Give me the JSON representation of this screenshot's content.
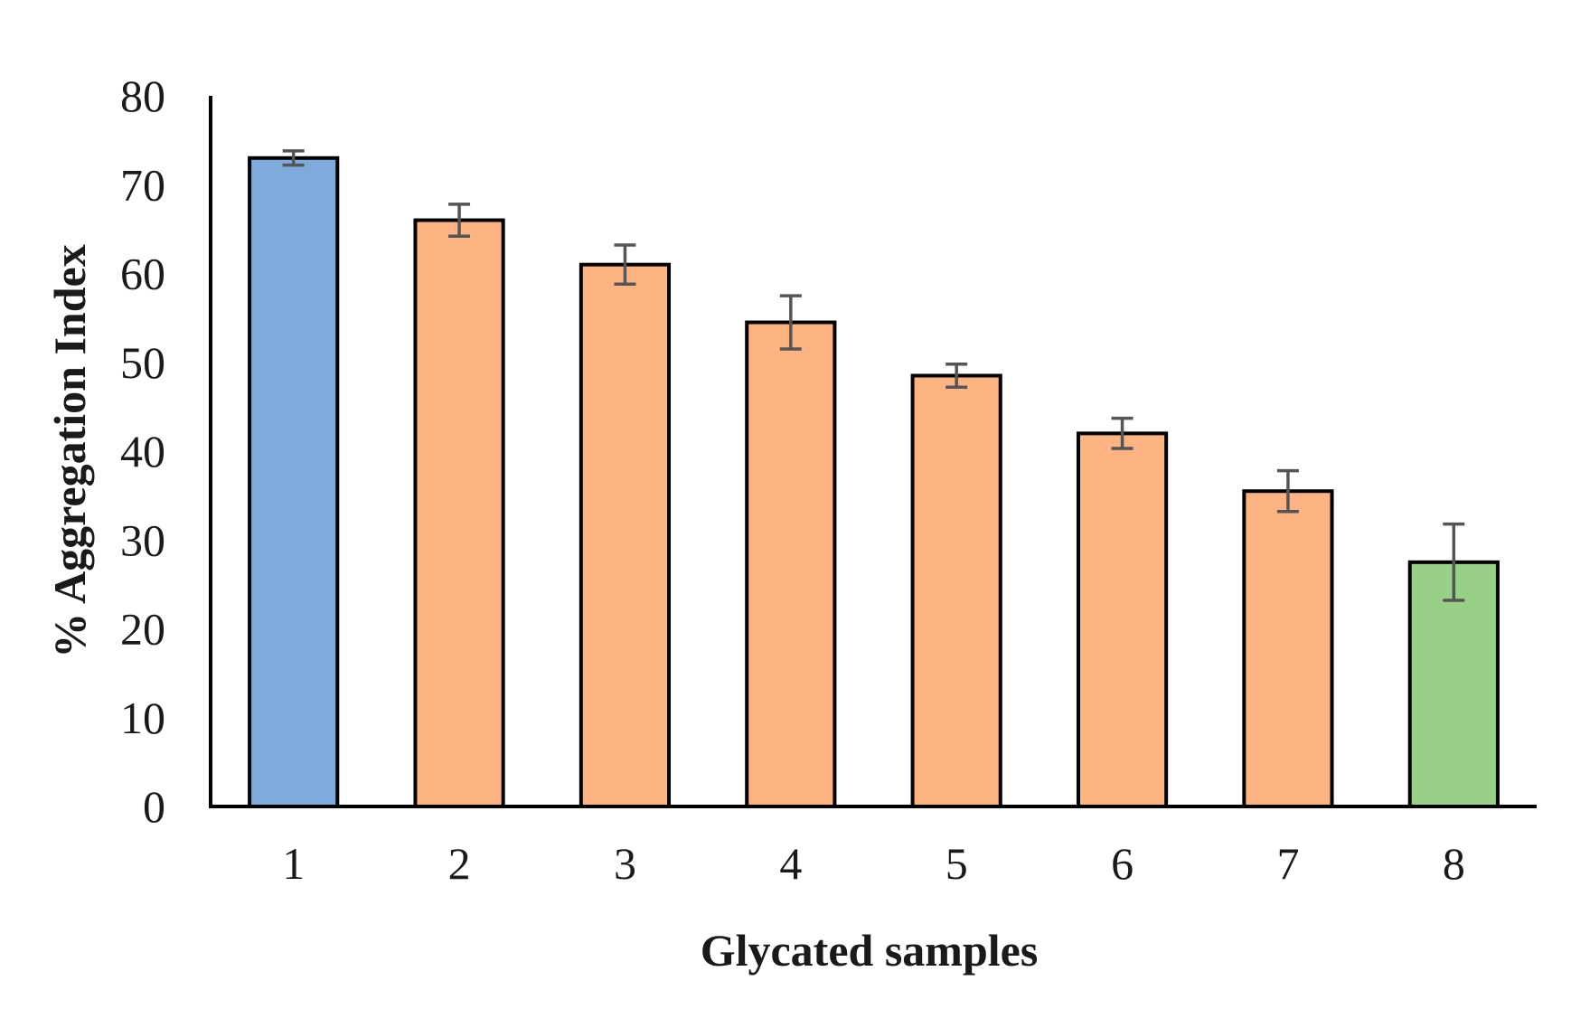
{
  "chart_data": {
    "type": "bar",
    "title": "",
    "xlabel": "Glycated samples",
    "ylabel": "% Aggregation Index",
    "ylim": [
      0,
      80
    ],
    "yticks": [
      0,
      10,
      20,
      30,
      40,
      50,
      60,
      70,
      80
    ],
    "categories": [
      "1",
      "2",
      "3",
      "4",
      "5",
      "6",
      "7",
      "8"
    ],
    "values": [
      73,
      66,
      61,
      54.5,
      48.5,
      42,
      35.5,
      27.5
    ],
    "errors": [
      0.8,
      1.8,
      2.2,
      3.0,
      1.3,
      1.7,
      2.3,
      4.3
    ],
    "bar_colors": [
      "#7faadc",
      "#fdb382",
      "#fdb382",
      "#fdb382",
      "#fdb382",
      "#fdb382",
      "#fdb382",
      "#98d088"
    ],
    "bar_outline_color": "#000000",
    "error_bar_color": "#555555",
    "grid": false,
    "legend": "none"
  }
}
